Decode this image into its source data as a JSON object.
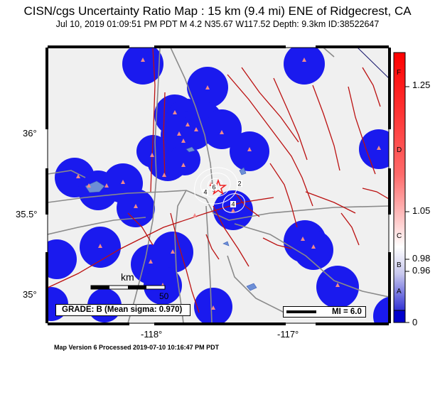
{
  "title": "CISN/cgs Uncertainty Ratio Map : 15 km (9.4 mi) ENE of Ridgecrest, CA",
  "subtitle": "Jul 10, 2019 01:09:51 PM PDT    M 4.2    N35.67 W117.52    Depth: 9.3km    ID:38522647",
  "footer": "Map Version 6 Processed 2019-07-10 10:16:47 PM PDT",
  "map": {
    "lat_ticks": [
      "36°",
      "35.5°",
      "35°"
    ],
    "lon_ticks": [
      "-118°",
      "-117°"
    ],
    "grade_label": "GRADE: B (Mean sigma: 0.970)",
    "mi_label": "MI = 6.0",
    "km_label": "km",
    "km_value": "50",
    "contour_labels": [
      "6",
      "4",
      "2",
      "4"
    ]
  },
  "colorbar": {
    "numeric_ticks": [
      "1.25",
      "1.05",
      "0.98",
      "0.96",
      "0"
    ],
    "grade_letters": [
      "F",
      "D",
      "C",
      "B",
      "A"
    ],
    "colors": {
      "top": "#ff0000",
      "middle": "#ffffff",
      "bottom": "#0000cc"
    }
  },
  "colors": {
    "background": "#f0f0f0",
    "uncertainty_blue": "#1a1aee",
    "station_triangle": "#f08a8a",
    "fault_red": "#bb1111",
    "road_gray": "#8a8a8a",
    "water": "#6c8ed6",
    "epicenter_star": "#ee2222"
  },
  "icons": {
    "epicenter": "star-icon",
    "station": "triangle-icon"
  }
}
